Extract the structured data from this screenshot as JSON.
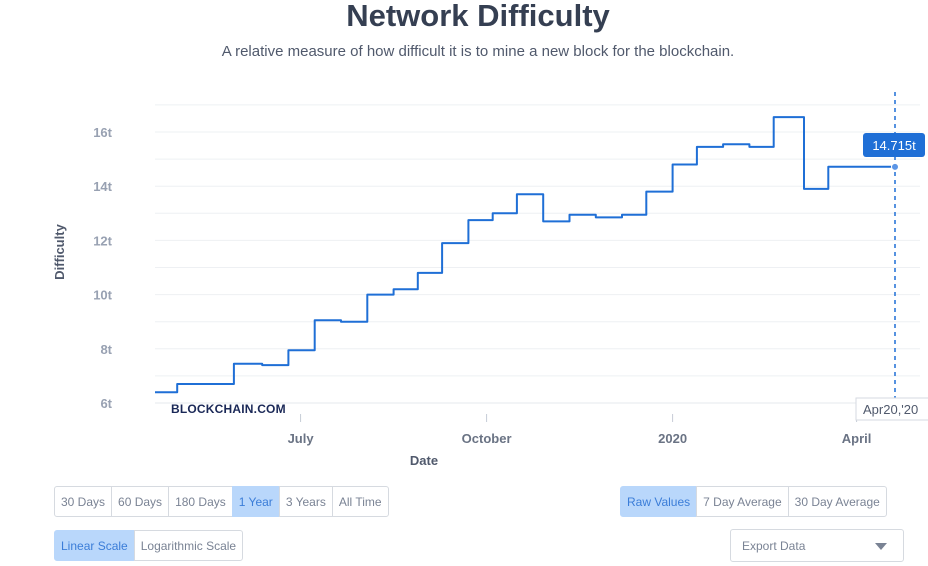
{
  "header": {
    "title": "Network Difficulty",
    "subtitle": "A relative measure of how difficult it is to mine a new block for the blockchain."
  },
  "chart_data": {
    "type": "line",
    "title": "Network Difficulty",
    "subtitle": "A relative measure of how difficult it is to mine a new block for the blockchain.",
    "xlabel": "Date",
    "ylabel": "Difficulty",
    "yticks": [
      "6t",
      "8t",
      "10t",
      "12t",
      "14t",
      "16t"
    ],
    "xticks": [
      "July",
      "October",
      "2020",
      "April"
    ],
    "ylim": [
      6,
      17
    ],
    "grid": true,
    "line_color": "#1f6fd6",
    "watermark": "BLOCKCHAIN.COM",
    "tooltip": {
      "value": "14.715t",
      "date": "Apr20,'20"
    },
    "series": [
      {
        "values": [
          [
            "2019-04-20",
            6.4
          ],
          [
            "2019-05-01",
            6.4
          ],
          [
            "2019-05-01",
            6.7
          ],
          [
            "2019-05-29",
            6.7
          ],
          [
            "2019-05-29",
            7.45
          ],
          [
            "2019-06-12",
            7.45
          ],
          [
            "2019-06-12",
            7.4
          ],
          [
            "2019-06-25",
            7.4
          ],
          [
            "2019-06-25",
            7.95
          ],
          [
            "2019-07-08",
            7.95
          ],
          [
            "2019-07-08",
            9.05
          ],
          [
            "2019-07-21",
            9.05
          ],
          [
            "2019-07-21",
            9.0
          ],
          [
            "2019-08-03",
            9.0
          ],
          [
            "2019-08-03",
            10.0
          ],
          [
            "2019-08-16",
            10.0
          ],
          [
            "2019-08-16",
            10.2
          ],
          [
            "2019-08-28",
            10.2
          ],
          [
            "2019-08-28",
            10.8
          ],
          [
            "2019-09-09",
            10.8
          ],
          [
            "2019-09-09",
            11.9
          ],
          [
            "2019-09-22",
            11.9
          ],
          [
            "2019-09-22",
            12.75
          ],
          [
            "2019-10-04",
            12.75
          ],
          [
            "2019-10-04",
            13.0
          ],
          [
            "2019-10-16",
            13.0
          ],
          [
            "2019-10-16",
            13.7
          ],
          [
            "2019-10-29",
            13.7
          ],
          [
            "2019-10-29",
            12.7
          ],
          [
            "2019-11-11",
            12.7
          ],
          [
            "2019-11-11",
            12.95
          ],
          [
            "2019-11-24",
            12.95
          ],
          [
            "2019-11-24",
            12.85
          ],
          [
            "2019-12-07",
            12.85
          ],
          [
            "2019-12-07",
            12.95
          ],
          [
            "2019-12-19",
            12.95
          ],
          [
            "2019-12-19",
            13.8
          ],
          [
            "2020-01-01",
            13.8
          ],
          [
            "2020-01-01",
            14.8
          ],
          [
            "2020-01-13",
            14.8
          ],
          [
            "2020-01-13",
            15.45
          ],
          [
            "2020-01-26",
            15.45
          ],
          [
            "2020-01-26",
            15.55
          ],
          [
            "2020-02-08",
            15.55
          ],
          [
            "2020-02-08",
            15.45
          ],
          [
            "2020-02-20",
            15.45
          ],
          [
            "2020-02-20",
            16.55
          ],
          [
            "2020-03-06",
            16.55
          ],
          [
            "2020-03-06",
            13.9
          ],
          [
            "2020-03-18",
            13.9
          ],
          [
            "2020-03-18",
            14.715
          ],
          [
            "2020-04-20",
            14.715
          ]
        ]
      }
    ]
  },
  "controls": {
    "range": [
      {
        "label": "30 Days",
        "active": false
      },
      {
        "label": "60 Days",
        "active": false
      },
      {
        "label": "180 Days",
        "active": false
      },
      {
        "label": "1 Year",
        "active": true
      },
      {
        "label": "3 Years",
        "active": false
      },
      {
        "label": "All Time",
        "active": false
      }
    ],
    "averages": [
      {
        "label": "Raw Values",
        "active": true
      },
      {
        "label": "7 Day Average",
        "active": false
      },
      {
        "label": "30 Day Average",
        "active": false
      }
    ],
    "scales": [
      {
        "label": "Linear Scale",
        "active": true
      },
      {
        "label": "Logarithmic Scale",
        "active": false
      }
    ],
    "export_label": "Export Data"
  }
}
